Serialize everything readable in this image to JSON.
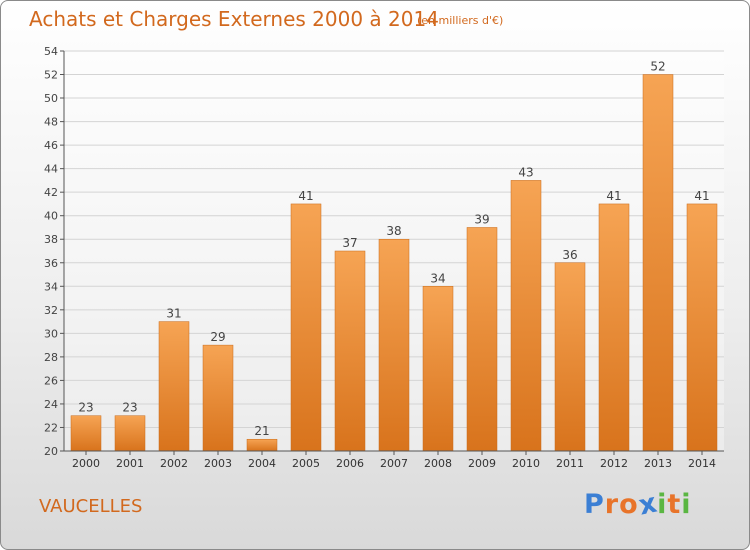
{
  "title": "Achats et Charges Externes 2000 à 2014",
  "subtitle": "(en milliers d'€)",
  "commune": "VAUCELLES",
  "brand": {
    "letters": [
      "P",
      "r",
      "o",
      "x",
      "i",
      "t",
      "i"
    ],
    "colors": [
      "#3b7fd4",
      "#e8742a",
      "#e8742a",
      "#3b7fd4",
      "#5ab642",
      "#e8742a",
      "#5ab642"
    ]
  },
  "colors": {
    "title": "#d2691e",
    "bar_top": "#f6a454",
    "bar_bottom": "#d8731c",
    "axis": "#555555",
    "grid": "#d4d4d4"
  },
  "chart_data": {
    "type": "bar",
    "categories": [
      "2000",
      "2001",
      "2002",
      "2003",
      "2004",
      "2005",
      "2006",
      "2007",
      "2008",
      "2009",
      "2010",
      "2011",
      "2012",
      "2013",
      "2014"
    ],
    "values": [
      23,
      23,
      31,
      29,
      21,
      41,
      37,
      38,
      34,
      39,
      43,
      36,
      41,
      52,
      41
    ],
    "title": "Achats et Charges Externes 2000 à 2014",
    "ylim": [
      20,
      54
    ],
    "yticks": [
      20,
      22,
      24,
      26,
      28,
      30,
      32,
      34,
      36,
      38,
      40,
      42,
      44,
      46,
      48,
      50,
      52,
      54
    ],
    "grid": true,
    "legend": "none"
  }
}
